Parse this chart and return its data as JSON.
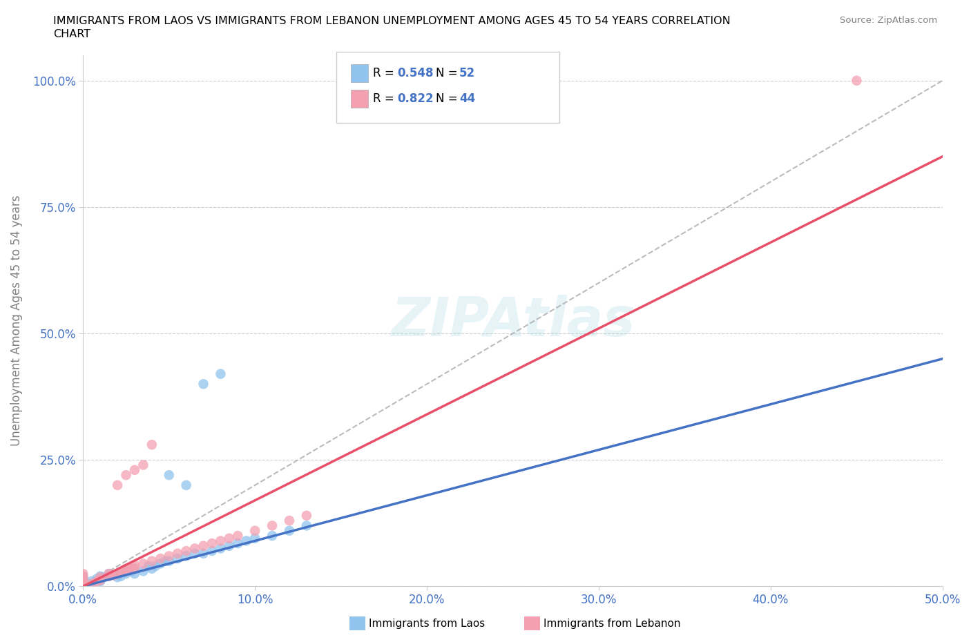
{
  "title_line1": "IMMIGRANTS FROM LAOS VS IMMIGRANTS FROM LEBANON UNEMPLOYMENT AMONG AGES 45 TO 54 YEARS CORRELATION",
  "title_line2": "CHART",
  "source": "Source: ZipAtlas.com",
  "ylabel": "Unemployment Among Ages 45 to 54 years",
  "xlim": [
    0,
    0.5
  ],
  "ylim": [
    0,
    1.05
  ],
  "xticks": [
    0.0,
    0.1,
    0.2,
    0.3,
    0.4,
    0.5
  ],
  "yticks": [
    0.0,
    0.25,
    0.5,
    0.75,
    1.0
  ],
  "xtick_labels": [
    "0.0%",
    "10.0%",
    "20.0%",
    "30.0%",
    "40.0%",
    "50.0%"
  ],
  "ytick_labels": [
    "0.0%",
    "25.0%",
    "50.0%",
    "75.0%",
    "100.0%"
  ],
  "laos_color": "#90C4EE",
  "lebanon_color": "#F4A0B0",
  "laos_R": 0.548,
  "laos_N": 52,
  "lebanon_R": 0.822,
  "lebanon_N": 44,
  "legend_labels": [
    "Immigrants from Laos",
    "Immigrants from Lebanon"
  ],
  "laos_line_color": "#4472C4",
  "lebanon_line_color": "#E8506A",
  "ref_line_color": "#AAAAAA",
  "laos_line_x0": 0.0,
  "laos_line_x1": 0.5,
  "laos_line_y0": 0.0,
  "laos_line_y1": 0.45,
  "lebanon_line_x0": 0.0,
  "lebanon_line_x1": 0.5,
  "lebanon_line_y0": 0.0,
  "lebanon_line_y1": 0.85,
  "laos_scatter_x": [
    0.0,
    0.0,
    0.0,
    0.0,
    0.0,
    0.0,
    0.0,
    0.0,
    0.0,
    0.0,
    0.005,
    0.005,
    0.008,
    0.01,
    0.01,
    0.01,
    0.012,
    0.015,
    0.015,
    0.018,
    0.02,
    0.02,
    0.022,
    0.025,
    0.025,
    0.028,
    0.03,
    0.03,
    0.035,
    0.038,
    0.04,
    0.042,
    0.045,
    0.048,
    0.05,
    0.055,
    0.06,
    0.065,
    0.07,
    0.075,
    0.08,
    0.085,
    0.09,
    0.095,
    0.1,
    0.11,
    0.12,
    0.13,
    0.05,
    0.06,
    0.07,
    0.08
  ],
  "laos_scatter_y": [
    0.0,
    0.0,
    0.0,
    0.002,
    0.003,
    0.005,
    0.008,
    0.01,
    0.015,
    0.02,
    0.005,
    0.01,
    0.015,
    0.01,
    0.015,
    0.02,
    0.018,
    0.02,
    0.025,
    0.022,
    0.018,
    0.025,
    0.02,
    0.025,
    0.03,
    0.03,
    0.025,
    0.035,
    0.03,
    0.04,
    0.035,
    0.04,
    0.045,
    0.05,
    0.05,
    0.055,
    0.06,
    0.065,
    0.065,
    0.07,
    0.075,
    0.08,
    0.085,
    0.09,
    0.095,
    0.1,
    0.11,
    0.12,
    0.22,
    0.2,
    0.4,
    0.42
  ],
  "lebanon_scatter_x": [
    0.0,
    0.0,
    0.0,
    0.0,
    0.0,
    0.0,
    0.0,
    0.0,
    0.005,
    0.008,
    0.01,
    0.01,
    0.015,
    0.015,
    0.018,
    0.02,
    0.022,
    0.025,
    0.025,
    0.028,
    0.03,
    0.03,
    0.035,
    0.04,
    0.045,
    0.05,
    0.055,
    0.06,
    0.065,
    0.07,
    0.075,
    0.08,
    0.085,
    0.09,
    0.1,
    0.11,
    0.12,
    0.13,
    0.02,
    0.025,
    0.03,
    0.035,
    0.04,
    0.45
  ],
  "lebanon_scatter_y": [
    0.0,
    0.002,
    0.005,
    0.008,
    0.01,
    0.015,
    0.02,
    0.025,
    0.005,
    0.01,
    0.012,
    0.018,
    0.02,
    0.025,
    0.022,
    0.025,
    0.028,
    0.03,
    0.035,
    0.035,
    0.035,
    0.042,
    0.045,
    0.05,
    0.055,
    0.06,
    0.065,
    0.07,
    0.075,
    0.08,
    0.085,
    0.09,
    0.095,
    0.1,
    0.11,
    0.12,
    0.13,
    0.14,
    0.2,
    0.22,
    0.23,
    0.24,
    0.28,
    1.0
  ]
}
